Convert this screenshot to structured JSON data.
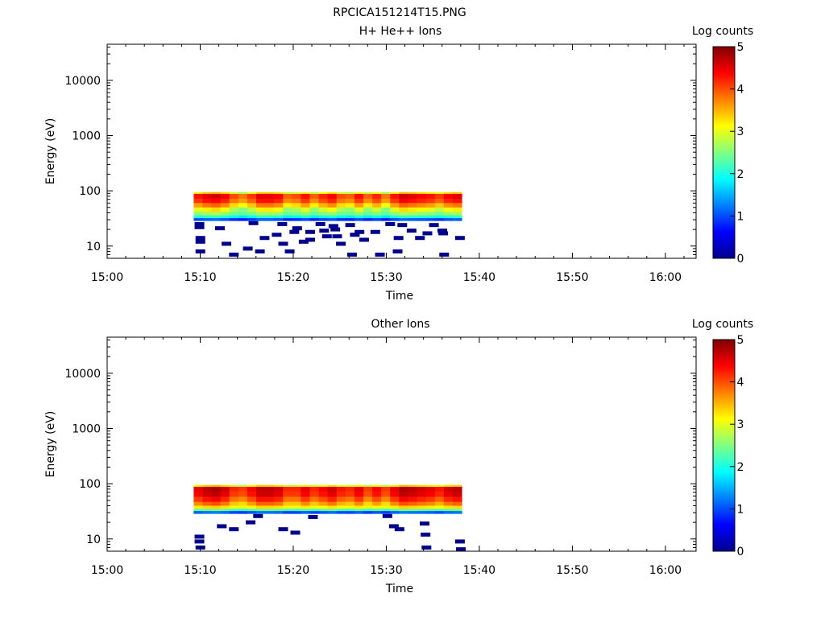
{
  "page_title": "RPCICA151214T15.PNG",
  "colorbar": {
    "title": "Log counts",
    "ticks": [
      0,
      1,
      2,
      3,
      4,
      5
    ],
    "range": [
      0,
      5
    ],
    "colormap": [
      "#00008f",
      "#0000ff",
      "#0080ff",
      "#00ffff",
      "#80ff80",
      "#ffff00",
      "#ff8000",
      "#ff0000",
      "#800000"
    ]
  },
  "chart_data": [
    {
      "type": "heatmap",
      "title": "H+ He++ Ions",
      "xlabel": "Time",
      "ylabel": "Energy (eV)",
      "x_ticks": [
        "15:00",
        "15:10",
        "15:20",
        "15:30",
        "15:40",
        "15:50",
        "16:00"
      ],
      "x_range_minutes": [
        0,
        63.3
      ],
      "y_ticks": [
        "10",
        "100",
        "1000",
        "10000"
      ],
      "y_scale": "log",
      "ylim": [
        6,
        45000
      ],
      "data_time_range_minutes": [
        9.3,
        38.1
      ],
      "band": {
        "energy_top": 95,
        "energy_bottom": 28,
        "layers": [
          {
            "e_hi": 95,
            "e_lo": 88,
            "log_counts": 3.2
          },
          {
            "e_hi": 88,
            "e_lo": 72,
            "log_counts": 4.3
          },
          {
            "e_hi": 72,
            "e_lo": 60,
            "log_counts": 4.1
          },
          {
            "e_hi": 60,
            "e_lo": 50,
            "log_counts": 3.6
          },
          {
            "e_hi": 50,
            "e_lo": 42,
            "log_counts": 3.0
          },
          {
            "e_hi": 42,
            "e_lo": 36,
            "log_counts": 2.6
          },
          {
            "e_hi": 36,
            "e_lo": 32,
            "log_counts": 2.0
          },
          {
            "e_hi": 32,
            "e_lo": 29,
            "log_counts": 1.0
          }
        ],
        "column_variation": [
          0.0,
          0.2,
          0.3,
          0.1,
          -0.3,
          -0.5,
          -0.2,
          0.2,
          0.2,
          0.1,
          -0.4,
          -0.3,
          0.0,
          -0.4,
          -0.1,
          0.1,
          -0.3,
          -0.4,
          0.0,
          -0.4,
          -0.1,
          -0.5,
          0.0,
          0.3,
          0.2,
          0.1,
          0.0,
          -0.2,
          0.1,
          0.2
        ]
      },
      "sparse_points": [
        {
          "t": 9.4,
          "e": 25
        },
        {
          "t": 9.4,
          "e": 22
        },
        {
          "t": 9.5,
          "e": 14
        },
        {
          "t": 9.5,
          "e": 12
        },
        {
          "t": 9.5,
          "e": 8
        },
        {
          "t": 11.6,
          "e": 21
        },
        {
          "t": 12.3,
          "e": 11
        },
        {
          "t": 13.1,
          "e": 7
        },
        {
          "t": 14.6,
          "e": 9
        },
        {
          "t": 15.2,
          "e": 26
        },
        {
          "t": 15.9,
          "e": 8
        },
        {
          "t": 16.4,
          "e": 14
        },
        {
          "t": 17.7,
          "e": 16
        },
        {
          "t": 18.3,
          "e": 25
        },
        {
          "t": 18.4,
          "e": 11
        },
        {
          "t": 19.1,
          "e": 8
        },
        {
          "t": 19.6,
          "e": 18
        },
        {
          "t": 19.9,
          "e": 21
        },
        {
          "t": 20.6,
          "e": 12
        },
        {
          "t": 21.3,
          "e": 18
        },
        {
          "t": 21.3,
          "e": 13
        },
        {
          "t": 22.4,
          "e": 25
        },
        {
          "t": 22.8,
          "e": 19
        },
        {
          "t": 23.1,
          "e": 15
        },
        {
          "t": 23.8,
          "e": 23
        },
        {
          "t": 24.0,
          "e": 20
        },
        {
          "t": 24.2,
          "e": 15
        },
        {
          "t": 24.6,
          "e": 11
        },
        {
          "t": 25.6,
          "e": 24
        },
        {
          "t": 25.8,
          "e": 7
        },
        {
          "t": 26.1,
          "e": 16
        },
        {
          "t": 26.6,
          "e": 18
        },
        {
          "t": 27.1,
          "e": 13
        },
        {
          "t": 28.3,
          "e": 18
        },
        {
          "t": 28.8,
          "e": 7
        },
        {
          "t": 29.9,
          "e": 25
        },
        {
          "t": 30.7,
          "e": 8
        },
        {
          "t": 30.8,
          "e": 14
        },
        {
          "t": 31.2,
          "e": 24
        },
        {
          "t": 32.2,
          "e": 19
        },
        {
          "t": 33.1,
          "e": 14
        },
        {
          "t": 33.9,
          "e": 17
        },
        {
          "t": 34.6,
          "e": 24
        },
        {
          "t": 35.5,
          "e": 19
        },
        {
          "t": 35.6,
          "e": 17
        },
        {
          "t": 35.7,
          "e": 7
        },
        {
          "t": 37.4,
          "e": 14
        }
      ]
    },
    {
      "type": "heatmap",
      "title": "Other Ions",
      "xlabel": "Time",
      "ylabel": "Energy (eV)",
      "x_ticks": [
        "15:00",
        "15:10",
        "15:20",
        "15:30",
        "15:40",
        "15:50",
        "16:00"
      ],
      "x_range_minutes": [
        0,
        63.3
      ],
      "y_ticks": [
        "10",
        "100",
        "1000",
        "10000"
      ],
      "y_scale": "log",
      "ylim": [
        6,
        45000
      ],
      "data_time_range_minutes": [
        9.3,
        38.1
      ],
      "band": {
        "energy_top": 95,
        "energy_bottom": 28,
        "layers": [
          {
            "e_hi": 95,
            "e_lo": 88,
            "log_counts": 3.2
          },
          {
            "e_hi": 88,
            "e_lo": 72,
            "log_counts": 4.5
          },
          {
            "e_hi": 72,
            "e_lo": 58,
            "log_counts": 4.4
          },
          {
            "e_hi": 58,
            "e_lo": 47,
            "log_counts": 4.1
          },
          {
            "e_hi": 47,
            "e_lo": 40,
            "log_counts": 3.7
          },
          {
            "e_hi": 40,
            "e_lo": 35,
            "log_counts": 3.2
          },
          {
            "e_hi": 35,
            "e_lo": 32,
            "log_counts": 2.3
          },
          {
            "e_hi": 32,
            "e_lo": 29,
            "log_counts": 1.1
          }
        ],
        "column_variation": [
          0.0,
          0.2,
          0.3,
          0.1,
          -0.3,
          -0.4,
          -0.1,
          0.2,
          0.2,
          0.1,
          -0.3,
          -0.3,
          0.0,
          -0.3,
          -0.1,
          0.1,
          -0.2,
          -0.3,
          0.0,
          -0.4,
          -0.1,
          -0.4,
          0.0,
          0.3,
          0.2,
          0.1,
          0.0,
          -0.2,
          0.1,
          0.2
        ]
      },
      "sparse_points": [
        {
          "t": 9.4,
          "e": 11
        },
        {
          "t": 9.4,
          "e": 9
        },
        {
          "t": 9.5,
          "e": 7
        },
        {
          "t": 11.8,
          "e": 17
        },
        {
          "t": 13.1,
          "e": 15
        },
        {
          "t": 14.9,
          "e": 20
        },
        {
          "t": 15.7,
          "e": 26
        },
        {
          "t": 18.4,
          "e": 15
        },
        {
          "t": 19.7,
          "e": 13
        },
        {
          "t": 21.6,
          "e": 25
        },
        {
          "t": 29.6,
          "e": 26
        },
        {
          "t": 30.3,
          "e": 17
        },
        {
          "t": 30.9,
          "e": 15
        },
        {
          "t": 33.6,
          "e": 19
        },
        {
          "t": 33.7,
          "e": 12
        },
        {
          "t": 33.8,
          "e": 7
        },
        {
          "t": 37.4,
          "e": 9
        },
        {
          "t": 37.5,
          "e": 6.5
        }
      ]
    }
  ]
}
